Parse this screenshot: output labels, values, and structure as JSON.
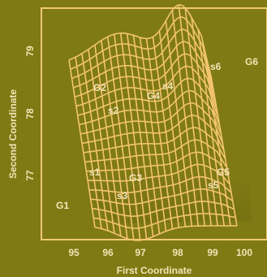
{
  "chart_data": {
    "type": "surface-3d",
    "xlabel": "First Coordinate",
    "ylabel": "Second Coordinate",
    "x_ticks": [
      "95",
      "96",
      "97",
      "98",
      "99",
      "100"
    ],
    "y_ticks": [
      "77",
      "78",
      "79"
    ],
    "points": [
      {
        "label": "G1",
        "x": 94.7,
        "y": 76.2
      },
      {
        "label": "G2",
        "x": 95.8,
        "y": 78.1
      },
      {
        "label": "G3",
        "x": 96.7,
        "y": 76.85
      },
      {
        "label": "G4",
        "x": 97.6,
        "y": 78.0
      },
      {
        "label": "G5",
        "x": 99.2,
        "y": 76.95
      },
      {
        "label": "G6",
        "x": 100.4,
        "y": 78.65
      },
      {
        "label": "s1",
        "x": 95.6,
        "y": 76.95
      },
      {
        "label": "s2",
        "x": 96.3,
        "y": 77.8
      },
      {
        "label": "s3",
        "x": 96.4,
        "y": 76.4
      },
      {
        "label": "s4",
        "x": 97.9,
        "y": 78.1
      },
      {
        "label": "s5",
        "x": 99.0,
        "y": 76.7
      },
      {
        "label": "s6",
        "x": 99.0,
        "y": 78.6
      }
    ],
    "colors": {
      "background": "#7f7a14",
      "frame": "#f1c777",
      "mesh": "#f3c46f",
      "text": "#f4e3b6",
      "shadow": "#6f6a10"
    }
  }
}
